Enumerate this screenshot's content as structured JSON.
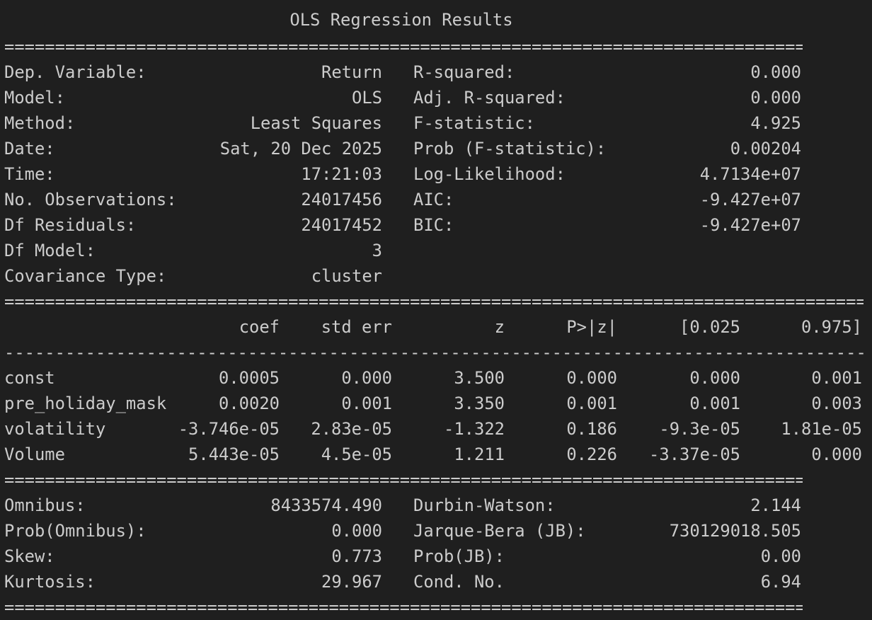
{
  "title": "OLS Regression Results",
  "separators": {
    "double": "==========================================================================================",
    "single": "------------------------------------------------------------------------------------------"
  },
  "summary": [
    {
      "left_label": "Dep. Variable:",
      "left_value": "Return",
      "right_label": "R-squared:",
      "right_value": "0.000"
    },
    {
      "left_label": "Model:",
      "left_value": "OLS",
      "right_label": "Adj. R-squared:",
      "right_value": "0.000"
    },
    {
      "left_label": "Method:",
      "left_value": "Least Squares",
      "right_label": "F-statistic:",
      "right_value": "4.925"
    },
    {
      "left_label": "Date:",
      "left_value": "Sat, 20 Dec 2025",
      "right_label": "Prob (F-statistic):",
      "right_value": "0.00204"
    },
    {
      "left_label": "Time:",
      "left_value": "17:21:03",
      "right_label": "Log-Likelihood:",
      "right_value": "4.7134e+07"
    },
    {
      "left_label": "No. Observations:",
      "left_value": "24017456",
      "right_label": "AIC:",
      "right_value": "-9.427e+07"
    },
    {
      "left_label": "Df Residuals:",
      "left_value": "24017452",
      "right_label": "BIC:",
      "right_value": "-9.427e+07"
    },
    {
      "left_label": "Df Model:",
      "left_value": "3",
      "right_label": "",
      "right_value": ""
    },
    {
      "left_label": "Covariance Type:",
      "left_value": "cluster",
      "right_label": "",
      "right_value": ""
    }
  ],
  "coef_table": {
    "headers": [
      "coef",
      "std err",
      "z",
      "P>|z|",
      "[0.025",
      "0.975]"
    ],
    "rows": [
      {
        "name": "const",
        "values": [
          "0.0005",
          "0.000",
          "3.500",
          "0.000",
          "0.000",
          "0.001"
        ]
      },
      {
        "name": "pre_holiday_mask",
        "values": [
          "0.0020",
          "0.001",
          "3.350",
          "0.001",
          "0.001",
          "0.003"
        ]
      },
      {
        "name": "volatility",
        "values": [
          "-3.746e-05",
          "2.83e-05",
          "-1.322",
          "0.186",
          "-9.3e-05",
          "1.81e-05"
        ]
      },
      {
        "name": "Volume",
        "values": [
          "5.443e-05",
          "4.5e-05",
          "1.211",
          "0.226",
          "-3.37e-05",
          "0.000"
        ]
      }
    ]
  },
  "diagnostics": [
    {
      "left_label": "Omnibus:",
      "left_value": "8433574.490",
      "right_label": "Durbin-Watson:",
      "right_value": "2.144"
    },
    {
      "left_label": "Prob(Omnibus):",
      "left_value": "0.000",
      "right_label": "Jarque-Bera (JB):",
      "right_value": "730129018.505"
    },
    {
      "left_label": "Skew:",
      "left_value": "0.773",
      "right_label": "Prob(JB):",
      "right_value": "0.00"
    },
    {
      "left_label": "Kurtosis:",
      "left_value": "29.967",
      "right_label": "Cond. No.",
      "right_value": "6.94"
    }
  ]
}
